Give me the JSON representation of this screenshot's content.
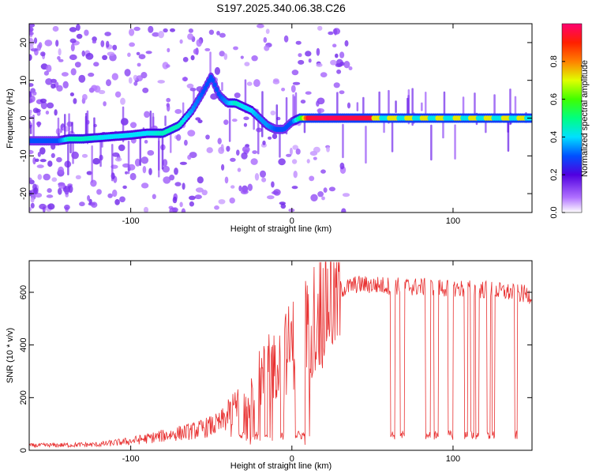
{
  "title": "S197.2025.340.06.38.C26",
  "colors": {
    "snr_line": "#e83030",
    "axis": "#000000"
  },
  "chart_data": [
    {
      "type": "heatmap",
      "name": "spectrogram",
      "xlabel": "Height of straight line (km)",
      "ylabel": "Frequency (Hz)",
      "xlim": [
        -163,
        149
      ],
      "ylim": [
        -25,
        25
      ],
      "xticks": [
        -100,
        0,
        100
      ],
      "xtick_labels": [
        "-100",
        "0",
        "100"
      ],
      "yticks": [
        -20,
        -10,
        0,
        10,
        20
      ],
      "ytick_labels": [
        "-20",
        "-10",
        "0",
        "10",
        "20"
      ],
      "colorbar": {
        "label": "Normalized spectral amplitude",
        "range": [
          0,
          1
        ],
        "ticks": [
          0.0,
          0.2,
          0.4,
          0.6,
          0.8
        ],
        "tick_labels": [
          "0.0",
          "0.2",
          "0.4",
          "0.6",
          "0.8"
        ]
      },
      "ridge": {
        "x": [
          -163,
          -145,
          -138,
          -130,
          -115,
          -100,
          -90,
          -80,
          -70,
          -62,
          -55,
          -50,
          -45,
          -40,
          -35,
          -30,
          -25,
          -20,
          -15,
          -10,
          -5,
          0,
          5,
          10,
          20,
          50,
          55,
          149
        ],
        "y": [
          -6,
          -6,
          -5.5,
          -5.5,
          -5,
          -4.5,
          -4,
          -4,
          -2,
          2,
          7,
          11,
          6,
          4,
          4,
          3,
          2,
          0,
          -2,
          -3,
          -3,
          -1,
          0,
          0,
          0,
          0,
          0,
          0
        ],
        "amplitude": [
          0.3,
          0.3,
          0.45,
          0.45,
          0.4,
          0.4,
          0.4,
          0.45,
          0.45,
          0.35,
          0.3,
          0.3,
          0.3,
          0.35,
          0.45,
          0.4,
          0.4,
          0.35,
          0.35,
          0.3,
          0.3,
          0.3,
          0.5,
          0.95,
          0.98,
          0.95,
          0.55,
          0.55
        ]
      }
    },
    {
      "type": "line",
      "name": "snr",
      "xlabel": "Height of straight line (km)",
      "ylabel": "SNR (10 * v/v)",
      "xlim": [
        -163,
        149
      ],
      "ylim": [
        0,
        720
      ],
      "xticks": [
        -100,
        0,
        100
      ],
      "xtick_labels": [
        "-100",
        "0",
        "100"
      ],
      "yticks": [
        0,
        200,
        400,
        600
      ],
      "ytick_labels": [
        "0",
        "200",
        "400",
        "600"
      ],
      "envelope": {
        "x": [
          -163,
          -120,
          -100,
          -80,
          -60,
          -45,
          -35,
          -25,
          -15,
          -5,
          0,
          10,
          20,
          30,
          40,
          60,
          80,
          100,
          120,
          149
        ],
        "y": [
          18,
          22,
          35,
          55,
          75,
          100,
          160,
          230,
          300,
          360,
          400,
          480,
          560,
          610,
          630,
          625,
          620,
          615,
          610,
          590
        ]
      },
      "dropouts": [
        [
          -33,
          -30
        ],
        [
          -23,
          -21
        ],
        [
          -17,
          -15
        ],
        [
          -7,
          -5
        ],
        [
          2,
          8
        ],
        [
          61,
          64
        ],
        [
          67,
          70
        ],
        [
          83,
          86
        ],
        [
          88,
          91
        ],
        [
          97,
          100
        ],
        [
          107,
          109
        ],
        [
          111,
          113
        ],
        [
          114,
          116
        ],
        [
          121,
          123
        ],
        [
          124,
          126
        ],
        [
          138,
          140
        ]
      ]
    }
  ]
}
